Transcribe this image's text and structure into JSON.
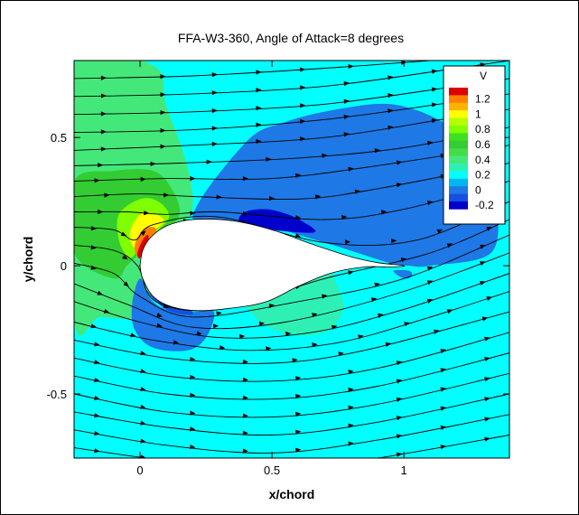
{
  "chart_data": {
    "type": "contour",
    "title": "FFA-W3-360, Angle of Attack=8 degrees",
    "xlabel": "x/chord",
    "ylabel": "y/chord",
    "xlim": [
      -0.25,
      1.4
    ],
    "ylim": [
      -0.75,
      0.8
    ],
    "x_ticks": [
      0,
      0.5,
      1
    ],
    "x_tick_labels": [
      "0",
      "0.5",
      "1"
    ],
    "y_ticks": [
      -0.5,
      0,
      0.5
    ],
    "y_tick_labels": [
      "-0.5",
      "0",
      "0.5"
    ],
    "grid": false,
    "legend": {
      "title": "V",
      "placement": "top-right",
      "levels": [
        {
          "value": 1.3,
          "label": "",
          "color": "#dd0000"
        },
        {
          "value": 1.2,
          "label": "1.2",
          "color": "#ff7f00"
        },
        {
          "value": 1.1,
          "label": "",
          "color": "#ffb300"
        },
        {
          "value": 1.0,
          "label": "1",
          "color": "#ffff00"
        },
        {
          "value": 0.9,
          "label": "",
          "color": "#b3ff00"
        },
        {
          "value": 0.8,
          "label": "0.8",
          "color": "#80ff00"
        },
        {
          "value": 0.7,
          "label": "",
          "color": "#40e020"
        },
        {
          "value": 0.6,
          "label": "0.6",
          "color": "#33cc33"
        },
        {
          "value": 0.5,
          "label": "",
          "color": "#46dc46"
        },
        {
          "value": 0.4,
          "label": "0.4",
          "color": "#44e87a"
        },
        {
          "value": 0.3,
          "label": "",
          "color": "#2ef0b4"
        },
        {
          "value": 0.2,
          "label": "0.2",
          "color": "#00ffff"
        },
        {
          "value": 0.1,
          "label": "",
          "color": "#00b6f0"
        },
        {
          "value": 0.0,
          "label": "0",
          "color": "#1e78e6"
        },
        {
          "value": -0.1,
          "label": "",
          "color": "#1650e0"
        },
        {
          "value": -0.2,
          "label": "-0.2",
          "color": "#0000cc"
        }
      ]
    },
    "background_color": "#00ffff",
    "airfoil": {
      "upper": [
        [
          0.0,
          0.0
        ],
        [
          0.01,
          0.06
        ],
        [
          0.04,
          0.11
        ],
        [
          0.1,
          0.155
        ],
        [
          0.2,
          0.18
        ],
        [
          0.35,
          0.175
        ],
        [
          0.5,
          0.14
        ],
        [
          0.65,
          0.085
        ],
        [
          0.8,
          0.035
        ],
        [
          0.9,
          0.012
        ],
        [
          1.0,
          0.0
        ]
      ],
      "lower": [
        [
          1.0,
          -0.02
        ],
        [
          0.95,
          -0.005
        ],
        [
          0.85,
          -0.005
        ],
        [
          0.72,
          -0.03
        ],
        [
          0.6,
          -0.08
        ],
        [
          0.48,
          -0.14
        ],
        [
          0.35,
          -0.165
        ],
        [
          0.22,
          -0.175
        ],
        [
          0.12,
          -0.16
        ],
        [
          0.05,
          -0.12
        ],
        [
          0.01,
          -0.05
        ],
        [
          0.0,
          0.0
        ]
      ]
    },
    "regions": [
      {
        "value": 0.4,
        "points": [
          [
            -0.25,
            0.78
          ],
          [
            0.05,
            0.78
          ],
          [
            0.1,
            0.62
          ],
          [
            0.17,
            0.42
          ],
          [
            0.2,
            0.24
          ],
          [
            0.15,
            0.12
          ],
          [
            0.1,
            0.05
          ],
          [
            0.05,
            -0.1
          ],
          [
            0.0,
            -0.2
          ],
          [
            -0.15,
            -0.2
          ],
          [
            -0.25,
            -0.2
          ]
        ]
      },
      {
        "value": 0.6,
        "points": [
          [
            -0.25,
            0.33
          ],
          [
            -0.1,
            0.37
          ],
          [
            0.05,
            0.37
          ],
          [
            0.12,
            0.3
          ],
          [
            0.15,
            0.2
          ],
          [
            0.08,
            0.12
          ],
          [
            0.0,
            0.05
          ],
          [
            -0.05,
            0.0
          ],
          [
            -0.1,
            -0.05
          ],
          [
            -0.25,
            0.05
          ]
        ]
      },
      {
        "value": 0.8,
        "points": [
          [
            -0.08,
            0.2
          ],
          [
            0.0,
            0.26
          ],
          [
            0.07,
            0.25
          ],
          [
            0.11,
            0.19
          ],
          [
            0.05,
            0.12
          ],
          [
            0.0,
            0.07
          ],
          [
            -0.04,
            0.03
          ],
          [
            -0.08,
            0.1
          ]
        ]
      },
      {
        "value": 1.0,
        "points": [
          [
            -0.04,
            0.12
          ],
          [
            0.0,
            0.2
          ],
          [
            0.06,
            0.2
          ],
          [
            0.09,
            0.17
          ],
          [
            0.03,
            0.12
          ],
          [
            -0.01,
            0.06
          ]
        ]
      },
      {
        "value": 1.2,
        "points": [
          [
            -0.02,
            0.08
          ],
          [
            0.01,
            0.14
          ],
          [
            0.05,
            0.15
          ],
          [
            0.06,
            0.13
          ],
          [
            0.02,
            0.08
          ],
          [
            -0.01,
            0.04
          ]
        ]
      },
      {
        "value": 1.3,
        "points": [
          [
            -0.01,
            0.05
          ],
          [
            0.01,
            0.1
          ],
          [
            0.03,
            0.12
          ],
          [
            0.03,
            0.08
          ],
          [
            0.0,
            0.03
          ]
        ]
      },
      {
        "value": 0.0,
        "points": [
          [
            0.2,
            0.18
          ],
          [
            0.4,
            0.48
          ],
          [
            0.55,
            0.56
          ],
          [
            0.75,
            0.61
          ],
          [
            0.95,
            0.63
          ],
          [
            1.13,
            0.57
          ],
          [
            1.25,
            0.47
          ],
          [
            1.3,
            0.38
          ],
          [
            1.35,
            0.25
          ],
          [
            1.33,
            0.05
          ],
          [
            1.1,
            0.0
          ],
          [
            1.02,
            0.0
          ],
          [
            0.95,
            0.01
          ],
          [
            0.7,
            0.09
          ],
          [
            0.45,
            0.16
          ]
        ]
      },
      {
        "value": 0.0,
        "points": [
          [
            0.0,
            -0.05
          ],
          [
            -0.03,
            -0.15
          ],
          [
            -0.02,
            -0.25
          ],
          [
            0.05,
            -0.32
          ],
          [
            0.18,
            -0.33
          ],
          [
            0.25,
            -0.28
          ],
          [
            0.28,
            -0.18
          ],
          [
            0.2,
            -0.18
          ],
          [
            0.1,
            -0.17
          ],
          [
            0.04,
            -0.13
          ]
        ]
      },
      {
        "value": -0.1,
        "points": [
          [
            0.02,
            -0.09
          ],
          [
            0.06,
            -0.14
          ],
          [
            0.12,
            -0.18
          ],
          [
            0.2,
            -0.19
          ],
          [
            0.17,
            -0.16
          ],
          [
            0.1,
            -0.15
          ],
          [
            0.05,
            -0.12
          ]
        ]
      },
      {
        "value": -0.2,
        "points": [
          [
            0.4,
            0.21
          ],
          [
            0.48,
            0.22
          ],
          [
            0.56,
            0.2
          ],
          [
            0.62,
            0.17
          ],
          [
            0.66,
            0.13
          ],
          [
            0.5,
            0.14
          ],
          [
            0.38,
            0.17
          ]
        ]
      },
      {
        "value": 0.3,
        "points": [
          [
            0.4,
            -0.14
          ],
          [
            0.47,
            -0.23
          ],
          [
            0.6,
            -0.27
          ],
          [
            0.72,
            -0.25
          ],
          [
            0.77,
            -0.16
          ],
          [
            0.74,
            -0.06
          ],
          [
            0.72,
            -0.03
          ],
          [
            0.6,
            -0.08
          ],
          [
            0.48,
            -0.14
          ]
        ]
      },
      {
        "value": 0.0,
        "points": [
          [
            0.96,
            -0.02
          ],
          [
            1.0,
            -0.05
          ],
          [
            1.03,
            -0.04
          ],
          [
            1.02,
            -0.02
          ]
        ]
      }
    ],
    "streamlines": [
      [
        [
          -0.25,
          0.73
        ],
        [
          0.2,
          0.74
        ],
        [
          0.7,
          0.77
        ],
        [
          1.1,
          0.8
        ]
      ],
      [
        [
          -0.25,
          0.66
        ],
        [
          0.2,
          0.67
        ],
        [
          0.7,
          0.7
        ],
        [
          1.2,
          0.77
        ],
        [
          1.4,
          0.8
        ]
      ],
      [
        [
          -0.25,
          0.59
        ],
        [
          0.2,
          0.6
        ],
        [
          0.7,
          0.63
        ],
        [
          1.2,
          0.7
        ],
        [
          1.4,
          0.73
        ]
      ],
      [
        [
          -0.25,
          0.52
        ],
        [
          0.2,
          0.53
        ],
        [
          0.7,
          0.57
        ],
        [
          1.2,
          0.64
        ],
        [
          1.4,
          0.67
        ]
      ],
      [
        [
          -0.25,
          0.45
        ],
        [
          0.2,
          0.47
        ],
        [
          0.7,
          0.5
        ],
        [
          1.2,
          0.58
        ],
        [
          1.4,
          0.61
        ]
      ],
      [
        [
          -0.25,
          0.39
        ],
        [
          0.15,
          0.4
        ],
        [
          0.6,
          0.42
        ],
        [
          1.0,
          0.46
        ],
        [
          1.4,
          0.54
        ]
      ],
      [
        [
          -0.25,
          0.33
        ],
        [
          0.1,
          0.34
        ],
        [
          0.5,
          0.34
        ],
        [
          0.9,
          0.39
        ],
        [
          1.4,
          0.47
        ]
      ],
      [
        [
          -0.25,
          0.27
        ],
        [
          0.0,
          0.28
        ],
        [
          0.2,
          0.27
        ],
        [
          0.6,
          0.26
        ],
        [
          0.9,
          0.3
        ],
        [
          1.4,
          0.4
        ]
      ],
      [
        [
          -0.25,
          0.21
        ],
        [
          -0.05,
          0.21
        ],
        [
          0.1,
          0.2
        ],
        [
          0.3,
          0.21
        ],
        [
          0.7,
          0.18
        ],
        [
          1.0,
          0.22
        ],
        [
          1.4,
          0.33
        ]
      ],
      [
        [
          -0.25,
          0.15
        ],
        [
          -0.1,
          0.14
        ],
        [
          -0.02,
          0.1
        ],
        [
          0.05,
          0.16
        ],
        [
          0.3,
          0.19
        ],
        [
          0.7,
          0.09
        ],
        [
          1.05,
          0.1
        ],
        [
          1.4,
          0.25
        ]
      ],
      [
        [
          -0.25,
          0.08
        ],
        [
          -0.1,
          0.06
        ],
        [
          -0.01,
          0.0
        ],
        [
          0.06,
          -0.14
        ],
        [
          0.3,
          -0.17
        ],
        [
          0.7,
          -0.05
        ],
        [
          1.1,
          0.05
        ],
        [
          1.4,
          0.18
        ]
      ],
      [
        [
          -0.25,
          0.01
        ],
        [
          -0.1,
          -0.03
        ],
        [
          0.0,
          -0.12
        ],
        [
          0.2,
          -0.2
        ],
        [
          0.6,
          -0.14
        ],
        [
          1.0,
          -0.05
        ],
        [
          1.4,
          0.12
        ]
      ],
      [
        [
          -0.25,
          -0.07
        ],
        [
          -0.05,
          -0.15
        ],
        [
          0.2,
          -0.24
        ],
        [
          0.55,
          -0.22
        ],
        [
          1.0,
          -0.1
        ],
        [
          1.4,
          0.05
        ]
      ],
      [
        [
          -0.25,
          -0.14
        ],
        [
          0.0,
          -0.22
        ],
        [
          0.3,
          -0.28
        ],
        [
          0.65,
          -0.26
        ],
        [
          1.0,
          -0.17
        ],
        [
          1.4,
          -0.03
        ]
      ],
      [
        [
          -0.25,
          -0.22
        ],
        [
          0.05,
          -0.29
        ],
        [
          0.4,
          -0.33
        ],
        [
          0.75,
          -0.3
        ],
        [
          1.1,
          -0.2
        ],
        [
          1.4,
          -0.1
        ]
      ],
      [
        [
          -0.25,
          -0.29
        ],
        [
          0.1,
          -0.36
        ],
        [
          0.5,
          -0.38
        ],
        [
          0.85,
          -0.33
        ],
        [
          1.4,
          -0.18
        ]
      ],
      [
        [
          -0.25,
          -0.36
        ],
        [
          0.1,
          -0.43
        ],
        [
          0.5,
          -0.45
        ],
        [
          0.9,
          -0.4
        ],
        [
          1.4,
          -0.26
        ]
      ],
      [
        [
          -0.25,
          -0.43
        ],
        [
          0.1,
          -0.5
        ],
        [
          0.5,
          -0.52
        ],
        [
          0.9,
          -0.47
        ],
        [
          1.4,
          -0.34
        ]
      ],
      [
        [
          -0.25,
          -0.5
        ],
        [
          0.1,
          -0.57
        ],
        [
          0.5,
          -0.59
        ],
        [
          0.9,
          -0.54
        ],
        [
          1.4,
          -0.42
        ]
      ],
      [
        [
          -0.25,
          -0.57
        ],
        [
          0.1,
          -0.63
        ],
        [
          0.5,
          -0.66
        ],
        [
          0.9,
          -0.61
        ],
        [
          1.4,
          -0.5
        ]
      ],
      [
        [
          -0.25,
          -0.64
        ],
        [
          0.1,
          -0.7
        ],
        [
          0.5,
          -0.73
        ],
        [
          0.9,
          -0.68
        ],
        [
          1.4,
          -0.58
        ]
      ],
      [
        [
          -0.25,
          -0.71
        ],
        [
          0.1,
          -0.76
        ],
        [
          0.5,
          -0.8
        ],
        [
          0.9,
          -0.75
        ],
        [
          1.4,
          -0.66
        ]
      ]
    ]
  }
}
